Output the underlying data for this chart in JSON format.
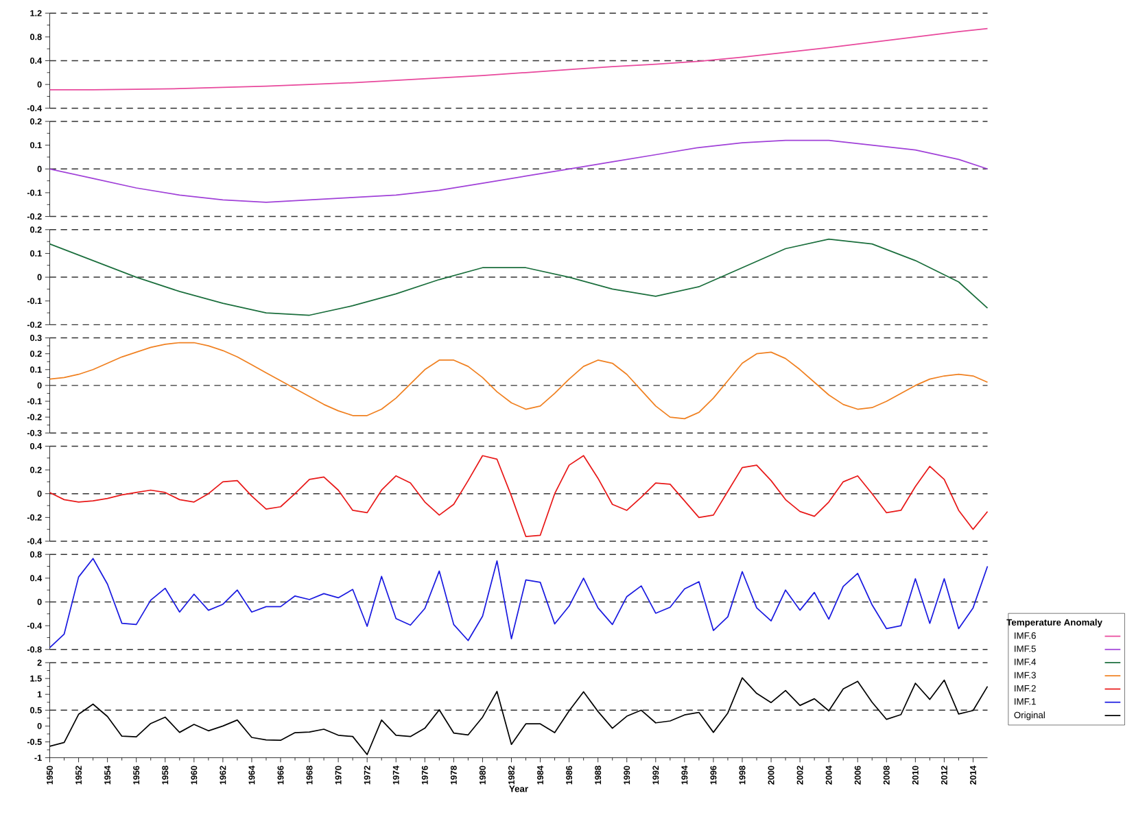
{
  "chart_data": [
    {
      "type": "line",
      "xlim": [
        1950,
        2015
      ],
      "ylim": [
        -0.4,
        1.2
      ],
      "yticks": [
        -0.4,
        0,
        0.4,
        0.8,
        1.2
      ],
      "tick_labels": "y",
      "ref_lines": [
        {
          "axis": "y",
          "value": 0.4,
          "line_style": "dashed"
        }
      ],
      "series": [
        {
          "name": "IMF.6",
          "color": "#e8489c",
          "x": [
            1950,
            1953,
            1956,
            1959,
            1962,
            1965,
            1968,
            1971,
            1974,
            1977,
            1980,
            1983,
            1986,
            1989,
            1992,
            1995,
            1998,
            2001,
            2004,
            2007,
            2010,
            2013,
            2015
          ],
          "values": [
            -0.09,
            -0.09,
            -0.08,
            -0.07,
            -0.05,
            -0.03,
            0.0,
            0.03,
            0.07,
            0.11,
            0.15,
            0.2,
            0.25,
            0.3,
            0.34,
            0.39,
            0.46,
            0.54,
            0.62,
            0.71,
            0.8,
            0.89,
            0.94
          ]
        }
      ]
    },
    {
      "type": "line",
      "xlim": [
        1950,
        2015
      ],
      "ylim": [
        -0.2,
        0.2
      ],
      "yticks": [
        -0.2,
        -0.1,
        0,
        0.1,
        0.2
      ],
      "tick_labels": "y",
      "ref_lines": [
        {
          "axis": "y",
          "value": 0,
          "line_style": "dashed"
        }
      ],
      "series": [
        {
          "name": "IMF.5",
          "color": "#a040d8",
          "x": [
            1950,
            1953,
            1956,
            1959,
            1962,
            1965,
            1968,
            1971,
            1974,
            1977,
            1980,
            1983,
            1986,
            1989,
            1992,
            1995,
            1998,
            2001,
            2004,
            2007,
            2010,
            2013,
            2015
          ],
          "values": [
            0,
            -0.04,
            -0.08,
            -0.11,
            -0.13,
            -0.14,
            -0.13,
            -0.12,
            -0.11,
            -0.09,
            -0.06,
            -0.03,
            0.0,
            0.03,
            0.06,
            0.09,
            0.11,
            0.12,
            0.12,
            0.1,
            0.08,
            0.04,
            0
          ]
        }
      ]
    },
    {
      "type": "line",
      "xlim": [
        1950,
        2015
      ],
      "ylim": [
        -0.2,
        0.2
      ],
      "yticks": [
        -0.2,
        -0.1,
        0,
        0.1,
        0.2
      ],
      "tick_labels": "y",
      "ref_lines": [
        {
          "axis": "y",
          "value": 0,
          "line_style": "dashed"
        }
      ],
      "series": [
        {
          "name": "IMF.4",
          "color": "#1a6e3c",
          "x": [
            1950,
            1953,
            1956,
            1959,
            1962,
            1965,
            1968,
            1971,
            1974,
            1977,
            1980,
            1983,
            1986,
            1989,
            1992,
            1995,
            1998,
            2001,
            2004,
            2007,
            2010,
            2013,
            2015
          ],
          "values": [
            0.14,
            0.07,
            0.0,
            -0.06,
            -0.11,
            -0.15,
            -0.16,
            -0.12,
            -0.07,
            -0.01,
            0.04,
            0.04,
            0.0,
            -0.05,
            -0.08,
            -0.04,
            0.04,
            0.12,
            0.16,
            0.14,
            0.07,
            -0.02,
            -0.13
          ]
        }
      ]
    },
    {
      "type": "line",
      "xlim": [
        1950,
        2015
      ],
      "ylim": [
        -0.3,
        0.3
      ],
      "yticks": [
        -0.3,
        -0.2,
        -0.1,
        0,
        0.1,
        0.2,
        0.3
      ],
      "tick_labels": "y",
      "ref_lines": [
        {
          "axis": "y",
          "value": 0,
          "line_style": "dashed"
        }
      ],
      "x": [
        1950,
        1951,
        1952,
        1953,
        1954,
        1955,
        1956,
        1957,
        1958,
        1959,
        1960,
        1961,
        1962,
        1963,
        1964,
        1965,
        1966,
        1967,
        1968,
        1969,
        1970,
        1971,
        1972,
        1973,
        1974,
        1975,
        1976,
        1977,
        1978,
        1979,
        1980,
        1981,
        1982,
        1983,
        1984,
        1985,
        1986,
        1987,
        1988,
        1989,
        1990,
        1991,
        1992,
        1993,
        1994,
        1995,
        1996,
        1997,
        1998,
        1999,
        2000,
        2001,
        2002,
        2003,
        2004,
        2005,
        2006,
        2007,
        2008,
        2009,
        2010,
        2011,
        2012,
        2013,
        2014,
        2015
      ],
      "series": [
        {
          "name": "IMF.3",
          "color": "#f08020",
          "values": [
            0.04,
            0.05,
            0.07,
            0.1,
            0.14,
            0.18,
            0.21,
            0.24,
            0.26,
            0.27,
            0.27,
            0.25,
            0.22,
            0.18,
            0.13,
            0.08,
            0.03,
            -0.02,
            -0.07,
            -0.12,
            -0.16,
            -0.19,
            -0.19,
            -0.15,
            -0.08,
            0.01,
            0.1,
            0.16,
            0.16,
            0.12,
            0.05,
            -0.04,
            -0.11,
            -0.15,
            -0.13,
            -0.05,
            0.04,
            0.12,
            0.16,
            0.14,
            0.07,
            -0.03,
            -0.13,
            -0.2,
            -0.21,
            -0.17,
            -0.08,
            0.03,
            0.14,
            0.2,
            0.21,
            0.17,
            0.1,
            0.02,
            -0.06,
            -0.12,
            -0.15,
            -0.14,
            -0.1,
            -0.05,
            0.0,
            0.04,
            0.06,
            0.07,
            0.06,
            0.02
          ]
        }
      ]
    },
    {
      "type": "line",
      "xlim": [
        1950,
        2015
      ],
      "ylim": [
        -0.4,
        0.4
      ],
      "yticks": [
        -0.4,
        -0.2,
        0,
        0.2,
        0.4
      ],
      "tick_labels": "y",
      "ref_lines": [
        {
          "axis": "y",
          "value": 0,
          "line_style": "dashed"
        }
      ],
      "x": [
        1950,
        1951,
        1952,
        1953,
        1954,
        1955,
        1956,
        1957,
        1958,
        1959,
        1960,
        1961,
        1962,
        1963,
        1964,
        1965,
        1966,
        1967,
        1968,
        1969,
        1970,
        1971,
        1972,
        1973,
        1974,
        1975,
        1976,
        1977,
        1978,
        1979,
        1980,
        1981,
        1982,
        1983,
        1984,
        1985,
        1986,
        1987,
        1988,
        1989,
        1990,
        1991,
        1992,
        1993,
        1994,
        1995,
        1996,
        1997,
        1998,
        1999,
        2000,
        2001,
        2002,
        2003,
        2004,
        2005,
        2006,
        2007,
        2008,
        2009,
        2010,
        2011,
        2012,
        2013,
        2014,
        2015
      ],
      "series": [
        {
          "name": "IMF.2",
          "color": "#e81818",
          "values": [
            0.01,
            -0.05,
            -0.07,
            -0.06,
            -0.04,
            -0.01,
            0.01,
            0.03,
            0.01,
            -0.05,
            -0.07,
            0.0,
            0.1,
            0.11,
            -0.02,
            -0.13,
            -0.11,
            0.0,
            0.12,
            0.14,
            0.03,
            -0.14,
            -0.16,
            0.03,
            0.15,
            0.09,
            -0.07,
            -0.18,
            -0.09,
            0.11,
            0.32,
            0.29,
            -0.02,
            -0.36,
            -0.35,
            0.0,
            0.24,
            0.32,
            0.13,
            -0.09,
            -0.14,
            -0.03,
            0.09,
            0.08,
            -0.06,
            -0.2,
            -0.18,
            0.02,
            0.22,
            0.24,
            0.11,
            -0.05,
            -0.15,
            -0.19,
            -0.07,
            0.1,
            0.15,
            0.0,
            -0.16,
            -0.14,
            0.06,
            0.23,
            0.12,
            -0.14,
            -0.3,
            -0.15
          ]
        }
      ]
    },
    {
      "type": "line",
      "xlim": [
        1950,
        2015
      ],
      "ylim": [
        -0.8,
        0.8
      ],
      "yticks": [
        -0.8,
        -0.4,
        0,
        0.4,
        0.8
      ],
      "tick_labels": "y",
      "ref_lines": [
        {
          "axis": "y",
          "value": 0,
          "line_style": "dashed"
        }
      ],
      "x": [
        1950,
        1951,
        1952,
        1953,
        1954,
        1955,
        1956,
        1957,
        1958,
        1959,
        1960,
        1961,
        1962,
        1963,
        1964,
        1965,
        1966,
        1967,
        1968,
        1969,
        1970,
        1971,
        1972,
        1973,
        1974,
        1975,
        1976,
        1977,
        1978,
        1979,
        1980,
        1981,
        1982,
        1983,
        1984,
        1985,
        1986,
        1987,
        1988,
        1989,
        1990,
        1991,
        1992,
        1993,
        1994,
        1995,
        1996,
        1997,
        1998,
        1999,
        2000,
        2001,
        2002,
        2003,
        2004,
        2005,
        2006,
        2007,
        2008,
        2009,
        2010,
        2011,
        2012,
        2013,
        2014,
        2015
      ],
      "series": [
        {
          "name": "IMF.1",
          "color": "#1a1ae0",
          "values": [
            -0.77,
            -0.54,
            0.42,
            0.73,
            0.3,
            -0.36,
            -0.38,
            0.03,
            0.23,
            -0.17,
            0.13,
            -0.14,
            -0.04,
            0.2,
            -0.17,
            -0.08,
            -0.08,
            0.1,
            0.04,
            0.14,
            0.07,
            0.21,
            -0.41,
            0.43,
            -0.28,
            -0.39,
            -0.11,
            0.52,
            -0.38,
            -0.65,
            -0.24,
            0.69,
            -0.62,
            0.37,
            0.33,
            -0.37,
            -0.07,
            0.4,
            -0.1,
            -0.38,
            0.09,
            0.27,
            -0.19,
            -0.09,
            0.22,
            0.34,
            -0.48,
            -0.25,
            0.51,
            -0.1,
            -0.32,
            0.2,
            -0.14,
            0.16,
            -0.29,
            0.26,
            0.48,
            -0.05,
            -0.45,
            -0.4,
            0.39,
            -0.36,
            0.39,
            -0.45,
            -0.1,
            0.6
          ]
        }
      ]
    },
    {
      "type": "line",
      "xlim": [
        1950,
        2015
      ],
      "ylim": [
        -1,
        2
      ],
      "yticks": [
        -1,
        -0.5,
        0,
        0.5,
        1,
        1.5,
        2
      ],
      "xlabel": "Year",
      "legend": "right",
      "legend_title": "Temperature Anomaly",
      "xticks": [
        1950,
        1952,
        1954,
        1956,
        1958,
        1960,
        1962,
        1964,
        1966,
        1968,
        1970,
        1972,
        1974,
        1976,
        1978,
        1980,
        1982,
        1984,
        1986,
        1988,
        1990,
        1992,
        1994,
        1996,
        1998,
        2000,
        2002,
        2004,
        2006,
        2008,
        2010,
        2012,
        2014
      ],
      "ref_lines": [
        {
          "axis": "y",
          "value": 0.5,
          "line_style": "dashed"
        }
      ],
      "x": [
        1950,
        1951,
        1952,
        1953,
        1954,
        1955,
        1956,
        1957,
        1958,
        1959,
        1960,
        1961,
        1962,
        1963,
        1964,
        1965,
        1966,
        1967,
        1968,
        1969,
        1970,
        1971,
        1972,
        1973,
        1974,
        1975,
        1976,
        1977,
        1978,
        1979,
        1980,
        1981,
        1982,
        1983,
        1984,
        1985,
        1986,
        1987,
        1988,
        1989,
        1990,
        1991,
        1992,
        1993,
        1994,
        1995,
        1996,
        1997,
        1998,
        1999,
        2000,
        2001,
        2002,
        2003,
        2004,
        2005,
        2006,
        2007,
        2008,
        2009,
        2010,
        2011,
        2012,
        2013,
        2014,
        2015
      ],
      "series": [
        {
          "name": "Original",
          "color": "#000000",
          "values": [
            -0.64,
            -0.52,
            0.37,
            0.69,
            0.3,
            -0.32,
            -0.34,
            0.08,
            0.28,
            -0.2,
            0.05,
            -0.15,
            0.0,
            0.19,
            -0.36,
            -0.44,
            -0.45,
            -0.21,
            -0.19,
            -0.1,
            -0.29,
            -0.33,
            -0.9,
            0.19,
            -0.29,
            -0.33,
            -0.07,
            0.51,
            -0.22,
            -0.28,
            0.28,
            1.09,
            -0.58,
            0.07,
            0.07,
            -0.21,
            0.48,
            1.08,
            0.46,
            -0.07,
            0.31,
            0.5,
            0.1,
            0.16,
            0.35,
            0.43,
            -0.2,
            0.41,
            1.52,
            1.03,
            0.74,
            1.12,
            0.65,
            0.86,
            0.48,
            1.17,
            1.41,
            0.75,
            0.21,
            0.36,
            1.35,
            0.84,
            1.45,
            0.38,
            0.49,
            1.25
          ]
        }
      ]
    }
  ]
}
